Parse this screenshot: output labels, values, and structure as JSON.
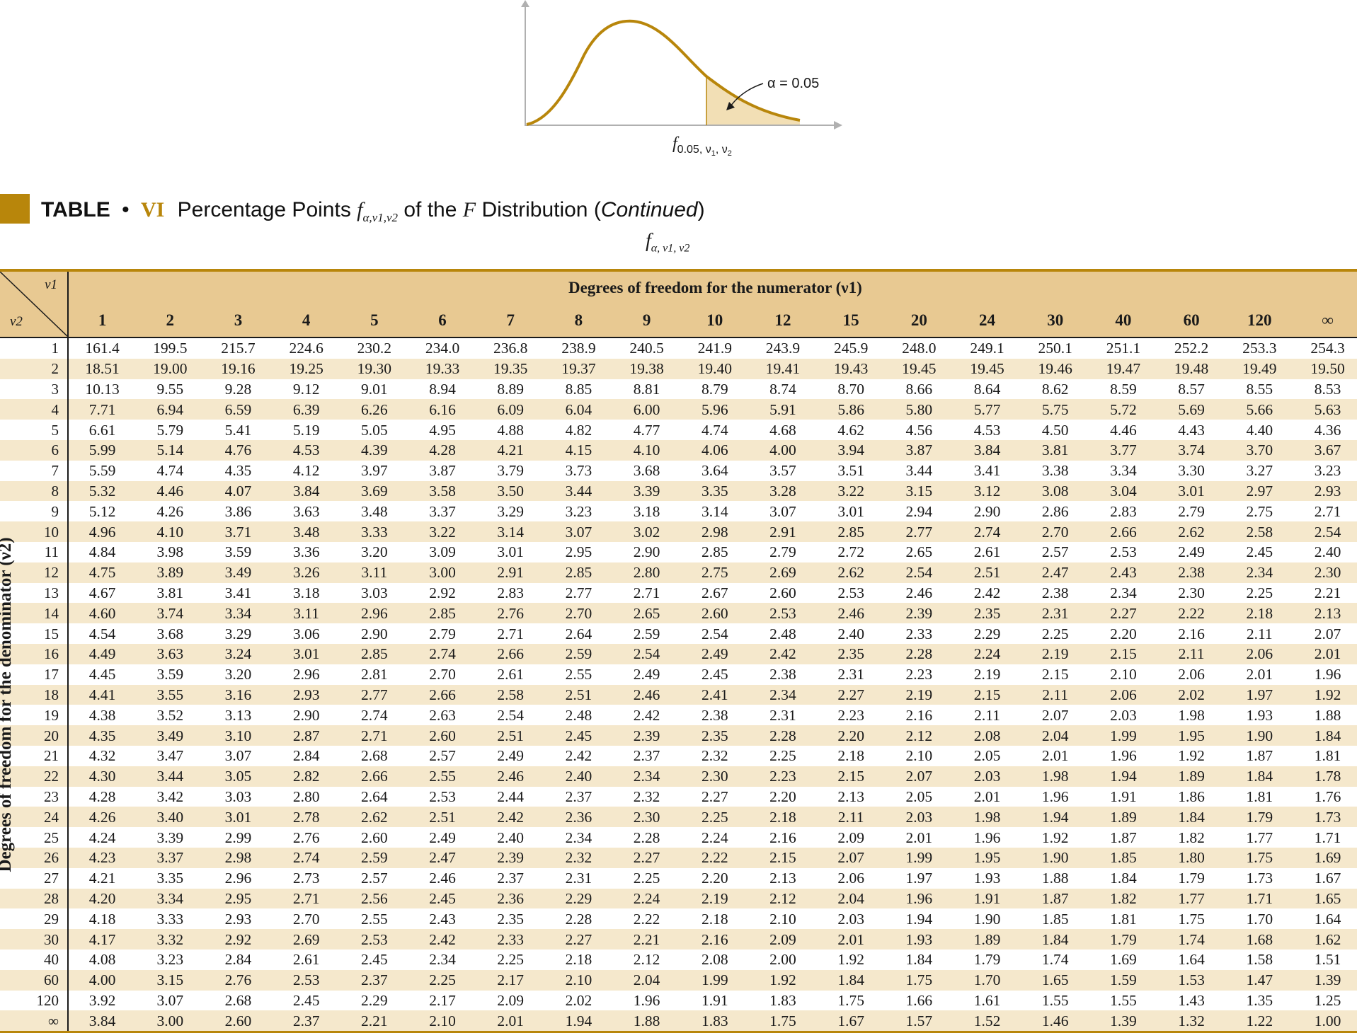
{
  "figure": {
    "alpha_label": "α = 0.05",
    "x_label_main": "f",
    "x_label_sub": "0.05, ν",
    "x_label_sub2": "1",
    "x_label_sep": ", ν",
    "x_label_sub3": "2",
    "curve_color": "#b8860b",
    "shade_color": "#f2dfb5"
  },
  "title": {
    "label": "TABLE",
    "bullet": "•",
    "roman": "VI",
    "main": "Percentage Points",
    "symbol": "f",
    "symbol_sub": "α,ν1,ν2",
    "rest": "of the",
    "italic_f": "F",
    "distribution": "Distribution (",
    "continued": "Continued",
    "close": ")"
  },
  "sub_symbol": {
    "main": "f",
    "sub": "α, ν1, ν2"
  },
  "table": {
    "corner_v1": "ν1",
    "corner_v2": "ν2",
    "numerator_header": "Degrees of freedom for the numerator (ν1)",
    "denominator_label": "Degrees of freedom for the denominator (ν2)",
    "columns": [
      "1",
      "2",
      "3",
      "4",
      "5",
      "6",
      "7",
      "8",
      "9",
      "10",
      "12",
      "15",
      "20",
      "24",
      "30",
      "40",
      "60",
      "120",
      "∞"
    ],
    "rows": [
      {
        "v2": "1",
        "values": [
          "161.4",
          "199.5",
          "215.7",
          "224.6",
          "230.2",
          "234.0",
          "236.8",
          "238.9",
          "240.5",
          "241.9",
          "243.9",
          "245.9",
          "248.0",
          "249.1",
          "250.1",
          "251.1",
          "252.2",
          "253.3",
          "254.3"
        ]
      },
      {
        "v2": "2",
        "values": [
          "18.51",
          "19.00",
          "19.16",
          "19.25",
          "19.30",
          "19.33",
          "19.35",
          "19.37",
          "19.38",
          "19.40",
          "19.41",
          "19.43",
          "19.45",
          "19.45",
          "19.46",
          "19.47",
          "19.48",
          "19.49",
          "19.50"
        ]
      },
      {
        "v2": "3",
        "values": [
          "10.13",
          "9.55",
          "9.28",
          "9.12",
          "9.01",
          "8.94",
          "8.89",
          "8.85",
          "8.81",
          "8.79",
          "8.74",
          "8.70",
          "8.66",
          "8.64",
          "8.62",
          "8.59",
          "8.57",
          "8.55",
          "8.53"
        ]
      },
      {
        "v2": "4",
        "values": [
          "7.71",
          "6.94",
          "6.59",
          "6.39",
          "6.26",
          "6.16",
          "6.09",
          "6.04",
          "6.00",
          "5.96",
          "5.91",
          "5.86",
          "5.80",
          "5.77",
          "5.75",
          "5.72",
          "5.69",
          "5.66",
          "5.63"
        ]
      },
      {
        "v2": "5",
        "values": [
          "6.61",
          "5.79",
          "5.41",
          "5.19",
          "5.05",
          "4.95",
          "4.88",
          "4.82",
          "4.77",
          "4.74",
          "4.68",
          "4.62",
          "4.56",
          "4.53",
          "4.50",
          "4.46",
          "4.43",
          "4.40",
          "4.36"
        ]
      },
      {
        "v2": "6",
        "values": [
          "5.99",
          "5.14",
          "4.76",
          "4.53",
          "4.39",
          "4.28",
          "4.21",
          "4.15",
          "4.10",
          "4.06",
          "4.00",
          "3.94",
          "3.87",
          "3.84",
          "3.81",
          "3.77",
          "3.74",
          "3.70",
          "3.67"
        ]
      },
      {
        "v2": "7",
        "values": [
          "5.59",
          "4.74",
          "4.35",
          "4.12",
          "3.97",
          "3.87",
          "3.79",
          "3.73",
          "3.68",
          "3.64",
          "3.57",
          "3.51",
          "3.44",
          "3.41",
          "3.38",
          "3.34",
          "3.30",
          "3.27",
          "3.23"
        ]
      },
      {
        "v2": "8",
        "values": [
          "5.32",
          "4.46",
          "4.07",
          "3.84",
          "3.69",
          "3.58",
          "3.50",
          "3.44",
          "3.39",
          "3.35",
          "3.28",
          "3.22",
          "3.15",
          "3.12",
          "3.08",
          "3.04",
          "3.01",
          "2.97",
          "2.93"
        ]
      },
      {
        "v2": "9",
        "values": [
          "5.12",
          "4.26",
          "3.86",
          "3.63",
          "3.48",
          "3.37",
          "3.29",
          "3.23",
          "3.18",
          "3.14",
          "3.07",
          "3.01",
          "2.94",
          "2.90",
          "2.86",
          "2.83",
          "2.79",
          "2.75",
          "2.71"
        ]
      },
      {
        "v2": "10",
        "values": [
          "4.96",
          "4.10",
          "3.71",
          "3.48",
          "3.33",
          "3.22",
          "3.14",
          "3.07",
          "3.02",
          "2.98",
          "2.91",
          "2.85",
          "2.77",
          "2.74",
          "2.70",
          "2.66",
          "2.62",
          "2.58",
          "2.54"
        ]
      },
      {
        "v2": "11",
        "values": [
          "4.84",
          "3.98",
          "3.59",
          "3.36",
          "3.20",
          "3.09",
          "3.01",
          "2.95",
          "2.90",
          "2.85",
          "2.79",
          "2.72",
          "2.65",
          "2.61",
          "2.57",
          "2.53",
          "2.49",
          "2.45",
          "2.40"
        ]
      },
      {
        "v2": "12",
        "values": [
          "4.75",
          "3.89",
          "3.49",
          "3.26",
          "3.11",
          "3.00",
          "2.91",
          "2.85",
          "2.80",
          "2.75",
          "2.69",
          "2.62",
          "2.54",
          "2.51",
          "2.47",
          "2.43",
          "2.38",
          "2.34",
          "2.30"
        ]
      },
      {
        "v2": "13",
        "values": [
          "4.67",
          "3.81",
          "3.41",
          "3.18",
          "3.03",
          "2.92",
          "2.83",
          "2.77",
          "2.71",
          "2.67",
          "2.60",
          "2.53",
          "2.46",
          "2.42",
          "2.38",
          "2.34",
          "2.30",
          "2.25",
          "2.21"
        ]
      },
      {
        "v2": "14",
        "values": [
          "4.60",
          "3.74",
          "3.34",
          "3.11",
          "2.96",
          "2.85",
          "2.76",
          "2.70",
          "2.65",
          "2.60",
          "2.53",
          "2.46",
          "2.39",
          "2.35",
          "2.31",
          "2.27",
          "2.22",
          "2.18",
          "2.13"
        ]
      },
      {
        "v2": "15",
        "values": [
          "4.54",
          "3.68",
          "3.29",
          "3.06",
          "2.90",
          "2.79",
          "2.71",
          "2.64",
          "2.59",
          "2.54",
          "2.48",
          "2.40",
          "2.33",
          "2.29",
          "2.25",
          "2.20",
          "2.16",
          "2.11",
          "2.07"
        ]
      },
      {
        "v2": "16",
        "values": [
          "4.49",
          "3.63",
          "3.24",
          "3.01",
          "2.85",
          "2.74",
          "2.66",
          "2.59",
          "2.54",
          "2.49",
          "2.42",
          "2.35",
          "2.28",
          "2.24",
          "2.19",
          "2.15",
          "2.11",
          "2.06",
          "2.01"
        ]
      },
      {
        "v2": "17",
        "values": [
          "4.45",
          "3.59",
          "3.20",
          "2.96",
          "2.81",
          "2.70",
          "2.61",
          "2.55",
          "2.49",
          "2.45",
          "2.38",
          "2.31",
          "2.23",
          "2.19",
          "2.15",
          "2.10",
          "2.06",
          "2.01",
          "1.96"
        ]
      },
      {
        "v2": "18",
        "values": [
          "4.41",
          "3.55",
          "3.16",
          "2.93",
          "2.77",
          "2.66",
          "2.58",
          "2.51",
          "2.46",
          "2.41",
          "2.34",
          "2.27",
          "2.19",
          "2.15",
          "2.11",
          "2.06",
          "2.02",
          "1.97",
          "1.92"
        ]
      },
      {
        "v2": "19",
        "values": [
          "4.38",
          "3.52",
          "3.13",
          "2.90",
          "2.74",
          "2.63",
          "2.54",
          "2.48",
          "2.42",
          "2.38",
          "2.31",
          "2.23",
          "2.16",
          "2.11",
          "2.07",
          "2.03",
          "1.98",
          "1.93",
          "1.88"
        ]
      },
      {
        "v2": "20",
        "values": [
          "4.35",
          "3.49",
          "3.10",
          "2.87",
          "2.71",
          "2.60",
          "2.51",
          "2.45",
          "2.39",
          "2.35",
          "2.28",
          "2.20",
          "2.12",
          "2.08",
          "2.04",
          "1.99",
          "1.95",
          "1.90",
          "1.84"
        ]
      },
      {
        "v2": "21",
        "values": [
          "4.32",
          "3.47",
          "3.07",
          "2.84",
          "2.68",
          "2.57",
          "2.49",
          "2.42",
          "2.37",
          "2.32",
          "2.25",
          "2.18",
          "2.10",
          "2.05",
          "2.01",
          "1.96",
          "1.92",
          "1.87",
          "1.81"
        ]
      },
      {
        "v2": "22",
        "values": [
          "4.30",
          "3.44",
          "3.05",
          "2.82",
          "2.66",
          "2.55",
          "2.46",
          "2.40",
          "2.34",
          "2.30",
          "2.23",
          "2.15",
          "2.07",
          "2.03",
          "1.98",
          "1.94",
          "1.89",
          "1.84",
          "1.78"
        ]
      },
      {
        "v2": "23",
        "values": [
          "4.28",
          "3.42",
          "3.03",
          "2.80",
          "2.64",
          "2.53",
          "2.44",
          "2.37",
          "2.32",
          "2.27",
          "2.20",
          "2.13",
          "2.05",
          "2.01",
          "1.96",
          "1.91",
          "1.86",
          "1.81",
          "1.76"
        ]
      },
      {
        "v2": "24",
        "values": [
          "4.26",
          "3.40",
          "3.01",
          "2.78",
          "2.62",
          "2.51",
          "2.42",
          "2.36",
          "2.30",
          "2.25",
          "2.18",
          "2.11",
          "2.03",
          "1.98",
          "1.94",
          "1.89",
          "1.84",
          "1.79",
          "1.73"
        ]
      },
      {
        "v2": "25",
        "values": [
          "4.24",
          "3.39",
          "2.99",
          "2.76",
          "2.60",
          "2.49",
          "2.40",
          "2.34",
          "2.28",
          "2.24",
          "2.16",
          "2.09",
          "2.01",
          "1.96",
          "1.92",
          "1.87",
          "1.82",
          "1.77",
          "1.71"
        ]
      },
      {
        "v2": "26",
        "values": [
          "4.23",
          "3.37",
          "2.98",
          "2.74",
          "2.59",
          "2.47",
          "2.39",
          "2.32",
          "2.27",
          "2.22",
          "2.15",
          "2.07",
          "1.99",
          "1.95",
          "1.90",
          "1.85",
          "1.80",
          "1.75",
          "1.69"
        ]
      },
      {
        "v2": "27",
        "values": [
          "4.21",
          "3.35",
          "2.96",
          "2.73",
          "2.57",
          "2.46",
          "2.37",
          "2.31",
          "2.25",
          "2.20",
          "2.13",
          "2.06",
          "1.97",
          "1.93",
          "1.88",
          "1.84",
          "1.79",
          "1.73",
          "1.67"
        ]
      },
      {
        "v2": "28",
        "values": [
          "4.20",
          "3.34",
          "2.95",
          "2.71",
          "2.56",
          "2.45",
          "2.36",
          "2.29",
          "2.24",
          "2.19",
          "2.12",
          "2.04",
          "1.96",
          "1.91",
          "1.87",
          "1.82",
          "1.77",
          "1.71",
          "1.65"
        ]
      },
      {
        "v2": "29",
        "values": [
          "4.18",
          "3.33",
          "2.93",
          "2.70",
          "2.55",
          "2.43",
          "2.35",
          "2.28",
          "2.22",
          "2.18",
          "2.10",
          "2.03",
          "1.94",
          "1.90",
          "1.85",
          "1.81",
          "1.75",
          "1.70",
          "1.64"
        ]
      },
      {
        "v2": "30",
        "values": [
          "4.17",
          "3.32",
          "2.92",
          "2.69",
          "2.53",
          "2.42",
          "2.33",
          "2.27",
          "2.21",
          "2.16",
          "2.09",
          "2.01",
          "1.93",
          "1.89",
          "1.84",
          "1.79",
          "1.74",
          "1.68",
          "1.62"
        ]
      },
      {
        "v2": "40",
        "values": [
          "4.08",
          "3.23",
          "2.84",
          "2.61",
          "2.45",
          "2.34",
          "2.25",
          "2.18",
          "2.12",
          "2.08",
          "2.00",
          "1.92",
          "1.84",
          "1.79",
          "1.74",
          "1.69",
          "1.64",
          "1.58",
          "1.51"
        ]
      },
      {
        "v2": "60",
        "values": [
          "4.00",
          "3.15",
          "2.76",
          "2.53",
          "2.37",
          "2.25",
          "2.17",
          "2.10",
          "2.04",
          "1.99",
          "1.92",
          "1.84",
          "1.75",
          "1.70",
          "1.65",
          "1.59",
          "1.53",
          "1.47",
          "1.39"
        ]
      },
      {
        "v2": "120",
        "values": [
          "3.92",
          "3.07",
          "2.68",
          "2.45",
          "2.29",
          "2.17",
          "2.09",
          "2.02",
          "1.96",
          "1.91",
          "1.83",
          "1.75",
          "1.66",
          "1.61",
          "1.55",
          "1.55",
          "1.43",
          "1.35",
          "1.25"
        ]
      },
      {
        "v2": "∞",
        "values": [
          "3.84",
          "3.00",
          "2.60",
          "2.37",
          "2.21",
          "2.10",
          "2.01",
          "1.94",
          "1.88",
          "1.83",
          "1.75",
          "1.67",
          "1.57",
          "1.52",
          "1.46",
          "1.39",
          "1.32",
          "1.22",
          "1.00"
        ]
      }
    ]
  }
}
